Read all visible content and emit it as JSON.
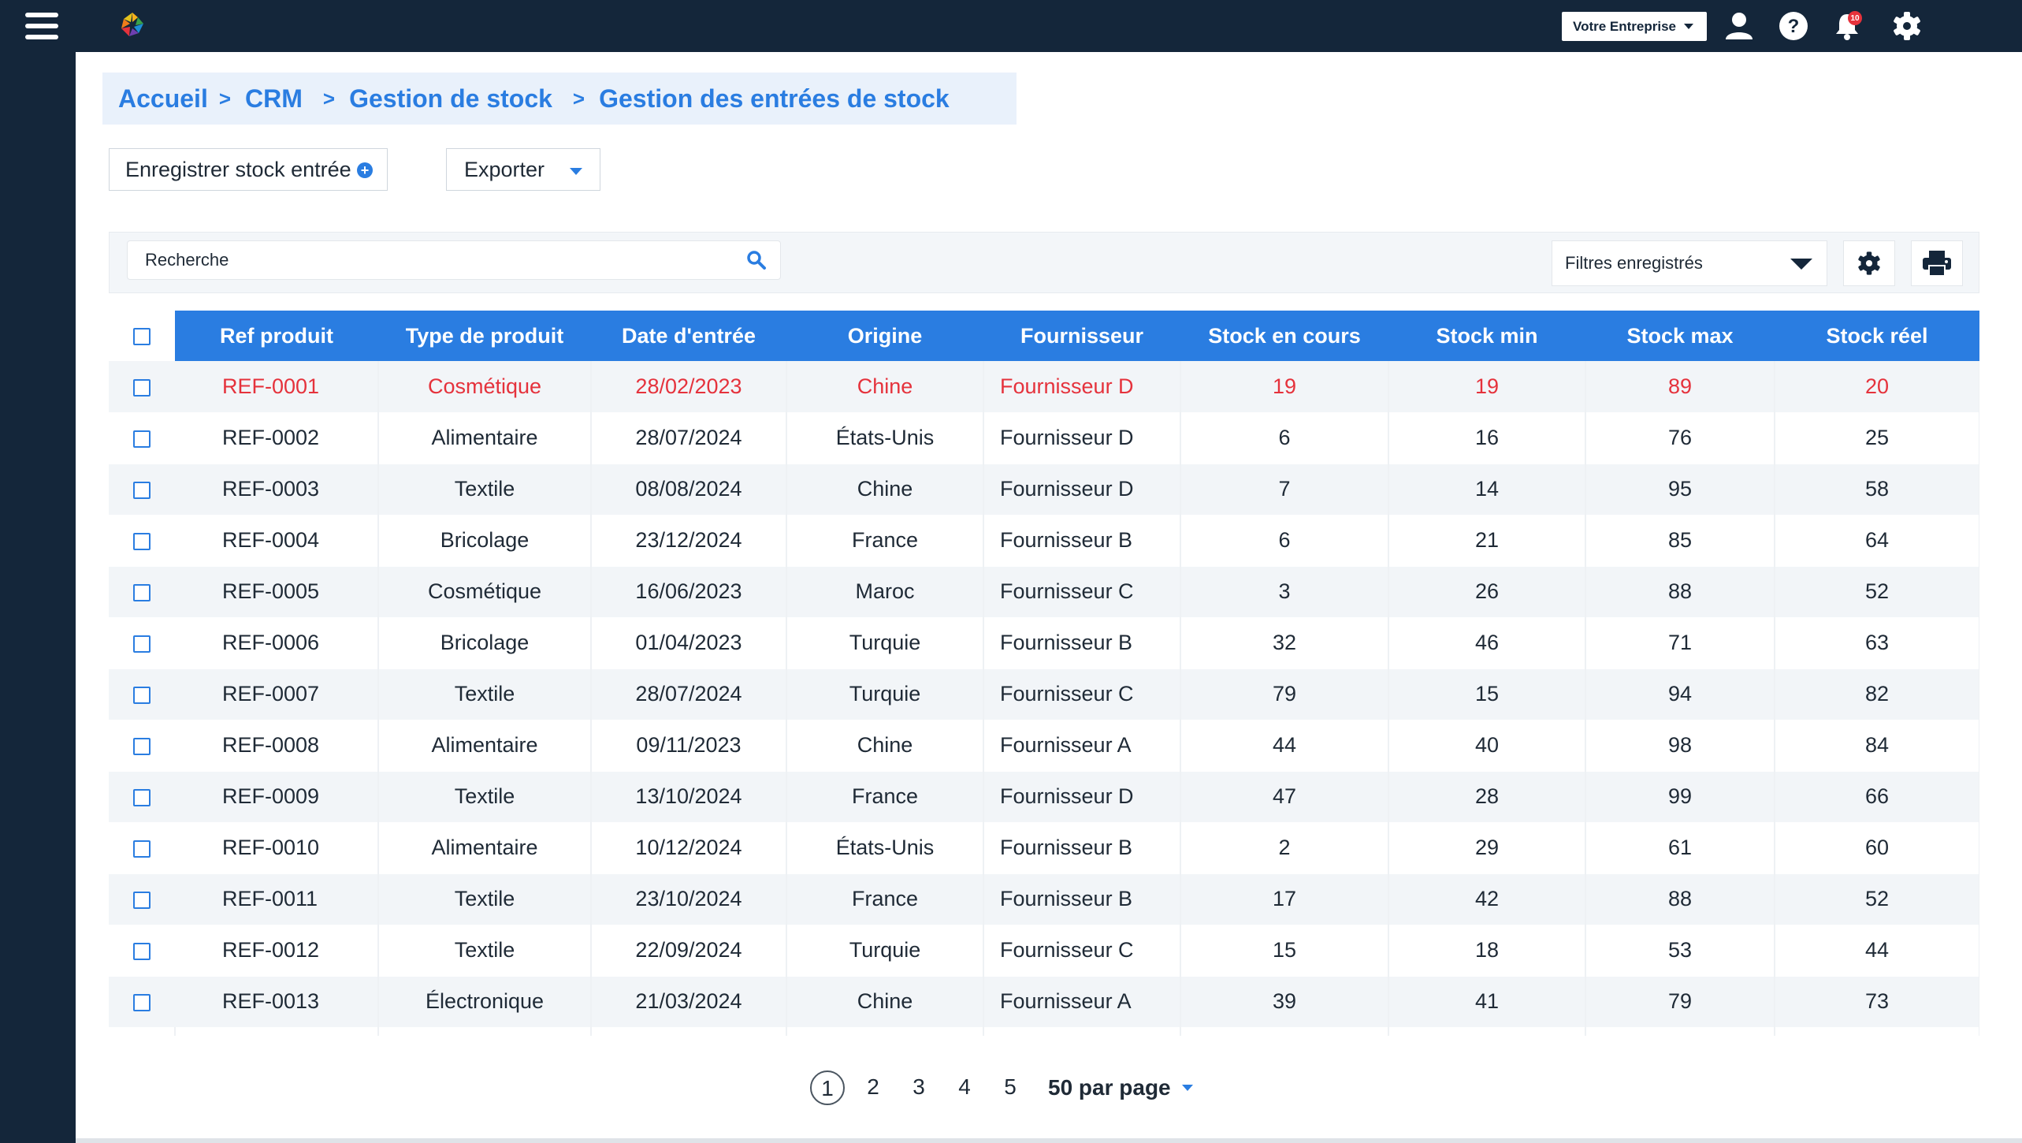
{
  "topbar": {
    "company": "Votre Entreprise",
    "notifications_count": "10"
  },
  "breadcrumb": [
    "Accueil",
    "CRM",
    "Gestion de stock",
    "Gestion des entrées de stock"
  ],
  "actions": {
    "record_label": "Enregistrer stock entrée",
    "export_label": "Exporter"
  },
  "filters": {
    "search_placeholder": "Recherche",
    "saved_filters_label": "Filtres enregistrés"
  },
  "table": {
    "columns": [
      "Ref produit",
      "Type de produit",
      "Date d'entrée",
      "Origine",
      "Fournisseur",
      "Stock en cours",
      "Stock min",
      "Stock max",
      "Stock réel"
    ],
    "rows": [
      {
        "ref": "REF-0001",
        "type": "Cosmétique",
        "date": "28/02/2023",
        "origin": "Chine",
        "supplier": "Fournisseur D",
        "current": "19",
        "min": "19",
        "max": "89",
        "real": "20",
        "alert": true
      },
      {
        "ref": "REF-0002",
        "type": "Alimentaire",
        "date": "28/07/2024",
        "origin": "États-Unis",
        "supplier": "Fournisseur D",
        "current": "6",
        "min": "16",
        "max": "76",
        "real": "25",
        "alert": false
      },
      {
        "ref": "REF-0003",
        "type": "Textile",
        "date": "08/08/2024",
        "origin": "Chine",
        "supplier": "Fournisseur D",
        "current": "7",
        "min": "14",
        "max": "95",
        "real": "58",
        "alert": false
      },
      {
        "ref": "REF-0004",
        "type": "Bricolage",
        "date": "23/12/2024",
        "origin": "France",
        "supplier": "Fournisseur B",
        "current": "6",
        "min": "21",
        "max": "85",
        "real": "64",
        "alert": false
      },
      {
        "ref": "REF-0005",
        "type": "Cosmétique",
        "date": "16/06/2023",
        "origin": "Maroc",
        "supplier": "Fournisseur C",
        "current": "3",
        "min": "26",
        "max": "88",
        "real": "52",
        "alert": false
      },
      {
        "ref": "REF-0006",
        "type": "Bricolage",
        "date": "01/04/2023",
        "origin": "Turquie",
        "supplier": "Fournisseur B",
        "current": "32",
        "min": "46",
        "max": "71",
        "real": "63",
        "alert": false
      },
      {
        "ref": "REF-0007",
        "type": "Textile",
        "date": "28/07/2024",
        "origin": "Turquie",
        "supplier": "Fournisseur C",
        "current": "79",
        "min": "15",
        "max": "94",
        "real": "82",
        "alert": false
      },
      {
        "ref": "REF-0008",
        "type": "Alimentaire",
        "date": "09/11/2023",
        "origin": "Chine",
        "supplier": "Fournisseur A",
        "current": "44",
        "min": "40",
        "max": "98",
        "real": "84",
        "alert": false
      },
      {
        "ref": "REF-0009",
        "type": "Textile",
        "date": "13/10/2024",
        "origin": "France",
        "supplier": "Fournisseur D",
        "current": "47",
        "min": "28",
        "max": "99",
        "real": "66",
        "alert": false
      },
      {
        "ref": "REF-0010",
        "type": "Alimentaire",
        "date": "10/12/2024",
        "origin": "États-Unis",
        "supplier": "Fournisseur B",
        "current": "2",
        "min": "29",
        "max": "61",
        "real": "60",
        "alert": false
      },
      {
        "ref": "REF-0011",
        "type": "Textile",
        "date": "23/10/2024",
        "origin": "France",
        "supplier": "Fournisseur B",
        "current": "17",
        "min": "42",
        "max": "88",
        "real": "52",
        "alert": false
      },
      {
        "ref": "REF-0012",
        "type": "Textile",
        "date": "22/09/2024",
        "origin": "Turquie",
        "supplier": "Fournisseur C",
        "current": "15",
        "min": "18",
        "max": "53",
        "real": "44",
        "alert": false
      },
      {
        "ref": "REF-0013",
        "type": "Électronique",
        "date": "21/03/2024",
        "origin": "Chine",
        "supplier": "Fournisseur A",
        "current": "39",
        "min": "41",
        "max": "79",
        "real": "73",
        "alert": false
      }
    ]
  },
  "pagination": {
    "pages": [
      "1",
      "2",
      "3",
      "4",
      "5"
    ],
    "current": "1",
    "per_page": "50 par page"
  },
  "colors": {
    "nav": "#14263a",
    "accent": "#2a7de1",
    "alert": "#e5323c"
  },
  "icons": [
    "menu-icon",
    "logo-icon",
    "user-icon",
    "help-icon",
    "bell-icon",
    "gear-icon",
    "search-icon",
    "settings-icon",
    "print-icon",
    "plus-circle-icon"
  ]
}
